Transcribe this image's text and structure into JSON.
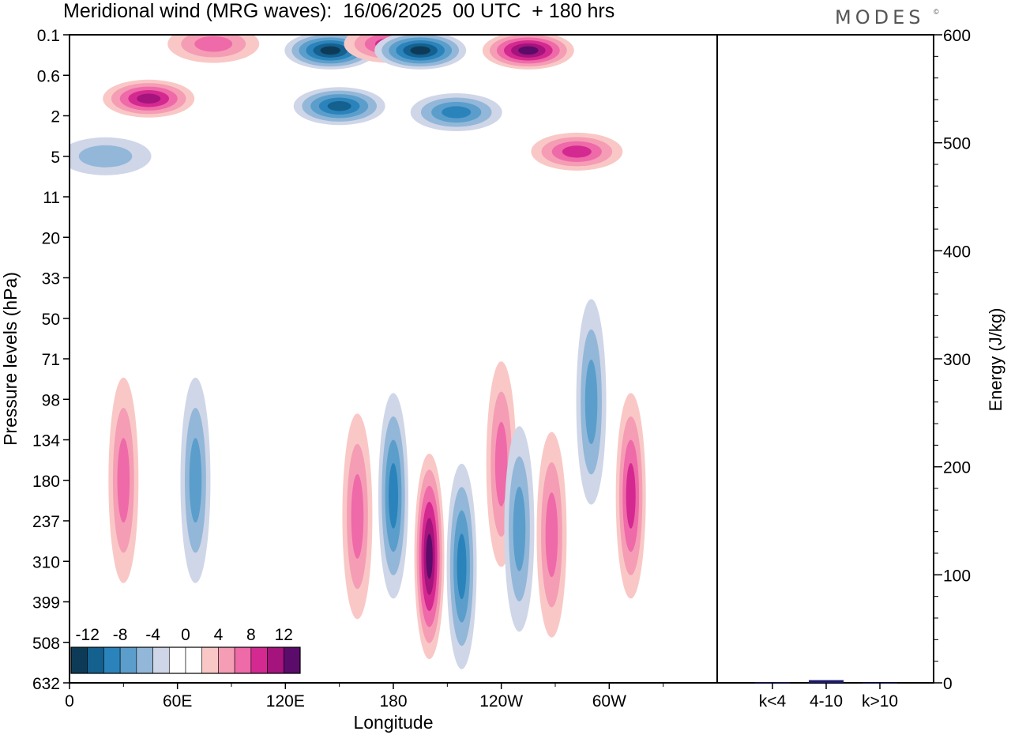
{
  "title": "Meridional wind (MRG waves):  16/06/2025  00 UTC  + 180 hrs",
  "brand": "MODES",
  "brand_mark": "©",
  "chart_data": [
    {
      "type": "heatmap",
      "title": "Meridional wind (MRG waves):  16/06/2025  00 UTC  + 180 hrs",
      "xlabel": "Longitude",
      "ylabel": "Pressure levels (hPa)",
      "x_ticks": [
        "0",
        "60E",
        "120E",
        "180",
        "120W",
        "60W"
      ],
      "x_tick_degrees": [
        0,
        60,
        120,
        180,
        240,
        300
      ],
      "xlim": [
        0,
        360
      ],
      "y_ticks": [
        "0.1",
        "0.6",
        "2",
        "5",
        "11",
        "20",
        "33",
        "50",
        "71",
        "98",
        "134",
        "180",
        "237",
        "310",
        "399",
        "508",
        "632"
      ],
      "colorbar": {
        "labels": [
          "-12",
          "-8",
          "-4",
          "0",
          "4",
          "8",
          "12"
        ],
        "colors": [
          "#0d3b57",
          "#14608f",
          "#2b83bb",
          "#5b9ecb",
          "#93b7d8",
          "#cfd6e8",
          "#ffffff",
          "#ffffff",
          "#f9c8c6",
          "#f59db5",
          "#ef6aa8",
          "#d42990",
          "#a5137d",
          "#5b0b6a"
        ]
      },
      "features": [
        {
          "lon": 44,
          "p": 1.2,
          "value": 12
        },
        {
          "lon": 80,
          "p": 0.15,
          "value": 8
        },
        {
          "lon": 145,
          "p": 0.2,
          "value": -14
        },
        {
          "lon": 150,
          "p": 1.5,
          "value": -12
        },
        {
          "lon": 178,
          "p": 0.15,
          "value": 10
        },
        {
          "lon": 195,
          "p": 0.2,
          "value": -14
        },
        {
          "lon": 215,
          "p": 1.8,
          "value": -10
        },
        {
          "lon": 255,
          "p": 0.2,
          "value": 14
        },
        {
          "lon": 282,
          "p": 4.5,
          "value": 9
        },
        {
          "lon": 20,
          "p": 5,
          "value": -5
        },
        {
          "lon": 30,
          "p": 180,
          "value": 6
        },
        {
          "lon": 70,
          "p": 180,
          "value": -8
        },
        {
          "lon": 160,
          "p": 230,
          "value": 7
        },
        {
          "lon": 180,
          "p": 200,
          "value": -9
        },
        {
          "lon": 200,
          "p": 300,
          "value": 14
        },
        {
          "lon": 218,
          "p": 320,
          "value": -10
        },
        {
          "lon": 240,
          "p": 160,
          "value": 7
        },
        {
          "lon": 250,
          "p": 250,
          "value": -8
        },
        {
          "lon": 268,
          "p": 260,
          "value": 8
        },
        {
          "lon": 290,
          "p": 100,
          "value": -6
        },
        {
          "lon": 312,
          "p": 200,
          "value": 9
        }
      ]
    },
    {
      "type": "bar",
      "ylabel": "Energy (J/kg)",
      "categories": [
        "k<4",
        "4-10",
        "k>10"
      ],
      "values": [
        0.5,
        2.5,
        0.3
      ],
      "ylim": [
        0,
        600
      ],
      "y_ticks": [
        "0",
        "100",
        "200",
        "300",
        "400",
        "500",
        "600"
      ],
      "bar_color": "#1a1a6e"
    }
  ]
}
